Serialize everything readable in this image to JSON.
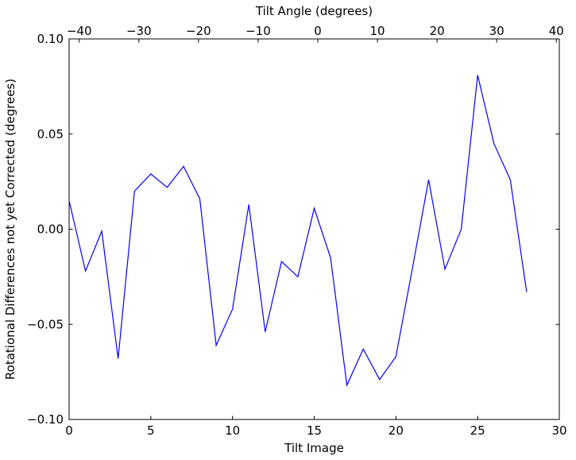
{
  "chart_data": {
    "type": "line",
    "title": "",
    "xlabel": "Tilt Image",
    "ylabel": "Rotational Differences not yet Corrected (degrees)",
    "top_axis": {
      "label": "Tilt Angle (degrees)",
      "lim": [
        -41.7,
        40.5
      ],
      "ticks": [
        -40,
        -30,
        -20,
        -10,
        0,
        10,
        20,
        30,
        40
      ],
      "tick_labels": [
        "−40",
        "−30",
        "−20",
        "−10",
        "0",
        "10",
        "20",
        "30",
        "40"
      ]
    },
    "xlim": [
      0,
      30
    ],
    "ylim": [
      -0.1,
      0.1
    ],
    "x_ticks": [
      0,
      5,
      10,
      15,
      20,
      25,
      30
    ],
    "x_tick_labels": [
      "0",
      "5",
      "10",
      "15",
      "20",
      "25",
      "30"
    ],
    "y_ticks": [
      0.1,
      0.05,
      0.0,
      -0.05,
      -0.1
    ],
    "y_tick_labels": [
      "0.10",
      "0.05",
      "0.00",
      "−0.05",
      "−0.10"
    ],
    "grid": false,
    "legend": null,
    "line_color": "#0000ff",
    "axis_color": "#000000",
    "background": "#ffffff",
    "x": [
      0,
      1,
      2,
      3,
      4,
      5,
      6,
      7,
      8,
      9,
      10,
      11,
      12,
      13,
      14,
      15,
      16,
      17,
      18,
      19,
      20,
      21,
      22,
      23,
      24,
      25,
      26,
      27,
      28
    ],
    "y": [
      0.015,
      -0.022,
      -0.001,
      -0.068,
      0.02,
      0.029,
      0.022,
      0.033,
      0.016,
      -0.061,
      -0.042,
      0.013,
      -0.054,
      -0.017,
      -0.025,
      0.011,
      -0.015,
      -0.082,
      -0.063,
      -0.079,
      -0.067,
      -0.021,
      0.026,
      -0.021,
      0.0,
      0.081,
      0.045,
      0.026,
      -0.033
    ]
  }
}
